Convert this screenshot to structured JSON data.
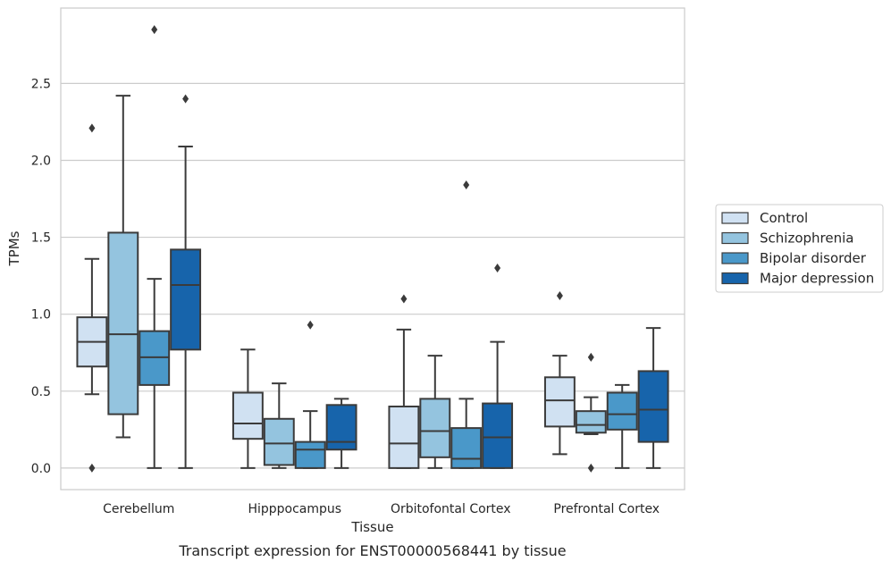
{
  "chart_data": {
    "type": "boxplot",
    "xlabel": "Tissue",
    "ylabel": "TPMs",
    "caption": "Transcript expression for ENST00000568441 by tissue",
    "ylim": [
      -0.14,
      2.99
    ],
    "yticks": [
      "0.0",
      "0.5",
      "1.0",
      "1.5",
      "2.0",
      "2.5"
    ],
    "grid": "horizontal",
    "legend_position": "right",
    "categories": [
      "Cerebellum",
      "Hipppocampus",
      "Orbitofontal Cortex",
      "Prefrontal Cortex"
    ],
    "series": [
      {
        "name": "Control",
        "color": "#d0e1f2",
        "boxes": [
          {
            "whislo": 0.48,
            "q1": 0.66,
            "med": 0.82,
            "q3": 0.98,
            "whishi": 1.36,
            "fliers": [
              2.21,
              0.0
            ]
          },
          {
            "whislo": 0.0,
            "q1": 0.19,
            "med": 0.29,
            "q3": 0.49,
            "whishi": 0.77,
            "fliers": []
          },
          {
            "whislo": 0.0,
            "q1": 0.0,
            "med": 0.16,
            "q3": 0.4,
            "whishi": 0.9,
            "fliers": [
              1.1
            ]
          },
          {
            "whislo": 0.09,
            "q1": 0.27,
            "med": 0.44,
            "q3": 0.59,
            "whishi": 0.73,
            "fliers": [
              1.12
            ]
          }
        ]
      },
      {
        "name": "Schizophrenia",
        "color": "#94c4df",
        "boxes": [
          {
            "whislo": 0.2,
            "q1": 0.35,
            "med": 0.87,
            "q3": 1.53,
            "whishi": 2.42,
            "fliers": []
          },
          {
            "whislo": 0.0,
            "q1": 0.02,
            "med": 0.16,
            "q3": 0.32,
            "whishi": 0.55,
            "fliers": []
          },
          {
            "whislo": 0.0,
            "q1": 0.07,
            "med": 0.24,
            "q3": 0.45,
            "whishi": 0.73,
            "fliers": []
          },
          {
            "whislo": 0.22,
            "q1": 0.23,
            "med": 0.28,
            "q3": 0.37,
            "whishi": 0.46,
            "fliers": [
              0.72,
              0.0
            ]
          }
        ]
      },
      {
        "name": "Bipolar disorder",
        "color": "#4a98c9",
        "boxes": [
          {
            "whislo": 0.0,
            "q1": 0.54,
            "med": 0.72,
            "q3": 0.89,
            "whishi": 1.23,
            "fliers": [
              2.85
            ]
          },
          {
            "whislo": 0.0,
            "q1": 0.0,
            "med": 0.12,
            "q3": 0.17,
            "whishi": 0.37,
            "fliers": [
              0.93
            ]
          },
          {
            "whislo": 0.0,
            "q1": 0.0,
            "med": 0.06,
            "q3": 0.26,
            "whishi": 0.45,
            "fliers": [
              1.84
            ]
          },
          {
            "whislo": 0.0,
            "q1": 0.25,
            "med": 0.35,
            "q3": 0.49,
            "whishi": 0.54,
            "fliers": []
          }
        ]
      },
      {
        "name": "Major depression",
        "color": "#1764ab",
        "boxes": [
          {
            "whislo": 0.0,
            "q1": 0.77,
            "med": 1.19,
            "q3": 1.42,
            "whishi": 2.09,
            "fliers": [
              2.4
            ]
          },
          {
            "whislo": 0.0,
            "q1": 0.12,
            "med": 0.17,
            "q3": 0.41,
            "whishi": 0.45,
            "fliers": []
          },
          {
            "whislo": 0.0,
            "q1": 0.0,
            "med": 0.2,
            "q3": 0.42,
            "whishi": 0.82,
            "fliers": [
              1.3
            ]
          },
          {
            "whislo": 0.0,
            "q1": 0.17,
            "med": 0.38,
            "q3": 0.63,
            "whishi": 0.91,
            "fliers": []
          }
        ]
      }
    ]
  }
}
